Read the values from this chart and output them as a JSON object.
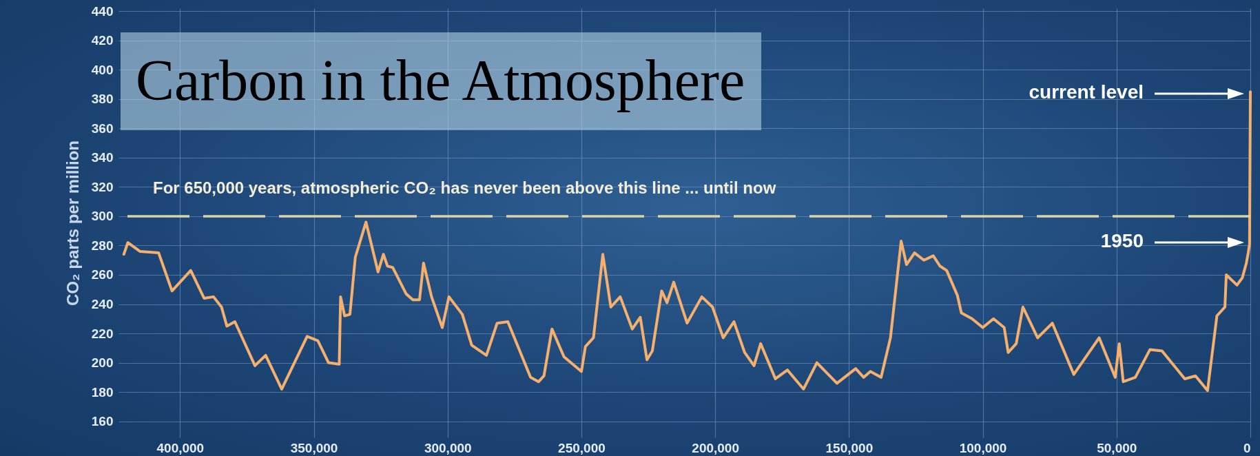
{
  "chart_data": {
    "type": "line",
    "title": "Carbon in the Atmosphere",
    "ylabel": "CO₂ parts per million",
    "x": [
      421000,
      419500,
      415000,
      408000,
      403000,
      396000,
      391000,
      387500,
      384500,
      382500,
      379500,
      372000,
      368000,
      362000,
      352500,
      348500,
      344500,
      340500,
      340000,
      338500,
      336500,
      334500,
      330500,
      326000,
      324000,
      322500,
      320500,
      315500,
      313000,
      310500,
      309000,
      306000,
      302000,
      299500,
      294500,
      291000,
      285500,
      281500,
      277500,
      269000,
      266000,
      264000,
      261000,
      256500,
      250000,
      248500,
      245500,
      242000,
      239000,
      235500,
      231000,
      228000,
      225500,
      223500,
      220000,
      218000,
      215500,
      210500,
      205000,
      201000,
      197000,
      193000,
      189000,
      185500,
      183000,
      177500,
      173000,
      167000,
      162000,
      154500,
      147500,
      144500,
      142000,
      138000,
      134500,
      130500,
      128500,
      125500,
      122000,
      118500,
      116000,
      113500,
      109500,
      108000,
      104000,
      100000,
      96000,
      92000,
      90500,
      87500,
      85000,
      79500,
      74000,
      66000,
      56500,
      50500,
      49000,
      47500,
      43000,
      37500,
      33000,
      24500,
      20500,
      16000,
      12500,
      9500,
      9000,
      5000,
      3000,
      1500,
      800,
      300,
      0
    ],
    "series": [
      {
        "color": "#f6b06e",
        "values": [
          274,
          282,
          276,
          275,
          249,
          263,
          244,
          245,
          238,
          225,
          228,
          198,
          205,
          182,
          218,
          215,
          200,
          199,
          245,
          232,
          233,
          272,
          296,
          262,
          274,
          266,
          265,
          247,
          243,
          243,
          268,
          245,
          224,
          245,
          233,
          212,
          205,
          227,
          228,
          190,
          187,
          191,
          223,
          204,
          194,
          211,
          217,
          274,
          238,
          245,
          223,
          231,
          202,
          208,
          249,
          241,
          255,
          227,
          245,
          238,
          217,
          228,
          207,
          198,
          213,
          189,
          195,
          182,
          200,
          186,
          196,
          190,
          194,
          190,
          217,
          283,
          267,
          275,
          270,
          273,
          266,
          263,
          246,
          234,
          230,
          224,
          230,
          224,
          207,
          213,
          238,
          217,
          227,
          192,
          217,
          190,
          213,
          187,
          190,
          209,
          208,
          189,
          191,
          181,
          232,
          238,
          260,
          253,
          258,
          268,
          275,
          281,
          385
        ]
      }
    ],
    "xlim": [
      423000,
      0
    ],
    "ylim": [
      149,
      442
    ],
    "xticks": [
      {
        "value": 400000,
        "label": "400,000"
      },
      {
        "value": 350000,
        "label": "350,000"
      },
      {
        "value": 300000,
        "label": "300,000"
      },
      {
        "value": 250000,
        "label": "250,000"
      },
      {
        "value": 200000,
        "label": "200,000"
      },
      {
        "value": 150000,
        "label": "150,000"
      },
      {
        "value": 100000,
        "label": "100,000"
      },
      {
        "value": 50000,
        "label": "50,000"
      },
      0
    ],
    "yticks": [
      160,
      180,
      200,
      220,
      240,
      260,
      280,
      300,
      320,
      340,
      360,
      380,
      400,
      420,
      440
    ],
    "grid": true,
    "marker": "none",
    "line_style": "solid",
    "ref_lines": [
      {
        "axis": "y",
        "value": 300,
        "label": "For 650,000 years, atmospheric CO₂ has never been above this line ... until now",
        "color": "#d9d3a6",
        "line_style": "dashed"
      }
    ],
    "annotations": [
      "current level",
      "1950"
    ]
  }
}
